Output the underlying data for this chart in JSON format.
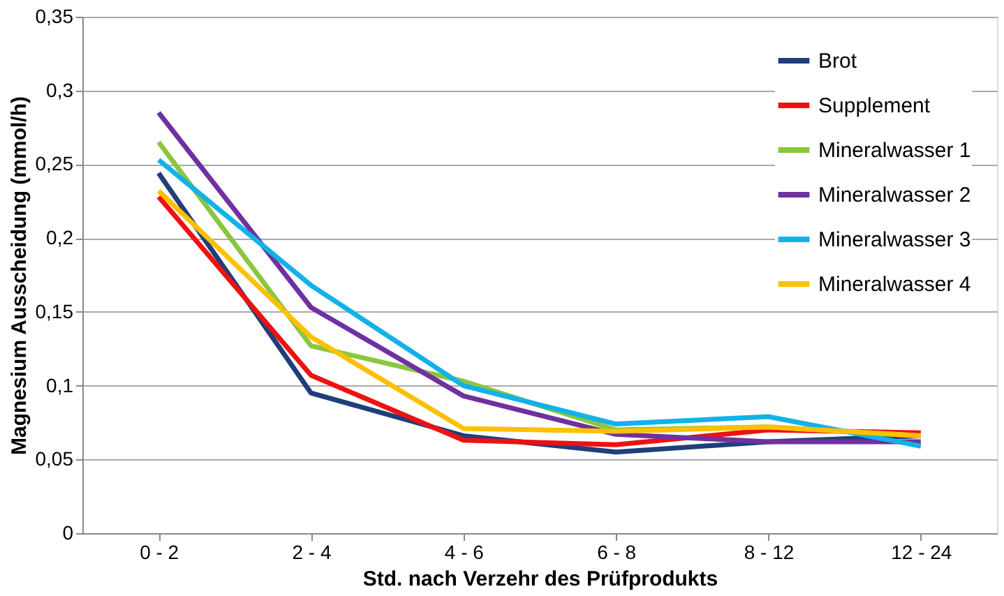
{
  "chart_data": {
    "type": "line",
    "xlabel": "Std. nach Verzehr des Prüfprodukts",
    "ylabel": "Magnesium Ausscheidung (mmol/h)",
    "categories": [
      "0 - 2",
      "2 - 4",
      "4 - 6",
      "6 - 8",
      "8 - 12",
      "12 - 24"
    ],
    "series": [
      {
        "name": "Brot",
        "color": "#1f3f7a",
        "values": [
          0.244,
          0.095,
          0.066,
          0.055,
          0.062,
          0.066
        ]
      },
      {
        "name": "Supplement",
        "color": "#ee1111",
        "values": [
          0.228,
          0.107,
          0.063,
          0.06,
          0.07,
          0.068
        ]
      },
      {
        "name": "Mineralwasser 1",
        "color": "#8cc63f",
        "values": [
          0.265,
          0.127,
          0.103,
          0.07,
          0.072,
          0.066
        ]
      },
      {
        "name": "Mineralwasser 2",
        "color": "#7030a0",
        "values": [
          0.285,
          0.153,
          0.093,
          0.067,
          0.062,
          0.062
        ]
      },
      {
        "name": "Mineralwasser 3",
        "color": "#12b2e8",
        "values": [
          0.253,
          0.168,
          0.1,
          0.074,
          0.079,
          0.059
        ]
      },
      {
        "name": "Mineralwasser 4",
        "color": "#ffc000",
        "values": [
          0.232,
          0.133,
          0.071,
          0.069,
          0.072,
          0.066
        ]
      }
    ],
    "ylim": [
      0,
      0.35
    ],
    "yticks": [
      0,
      {
        "value": 0.05,
        "label": "0,05"
      },
      {
        "value": 0.1,
        "label": "0,1"
      },
      {
        "value": 0.15,
        "label": "0,15"
      },
      {
        "value": 0.2,
        "label": "0,2"
      },
      {
        "value": 0.25,
        "label": "0,25"
      },
      {
        "value": 0.3,
        "label": "0,3"
      },
      {
        "value": 0.35,
        "label": "0,35"
      }
    ],
    "grid": "y",
    "legend": "top right",
    "marker": "none",
    "line_style": "solid"
  }
}
